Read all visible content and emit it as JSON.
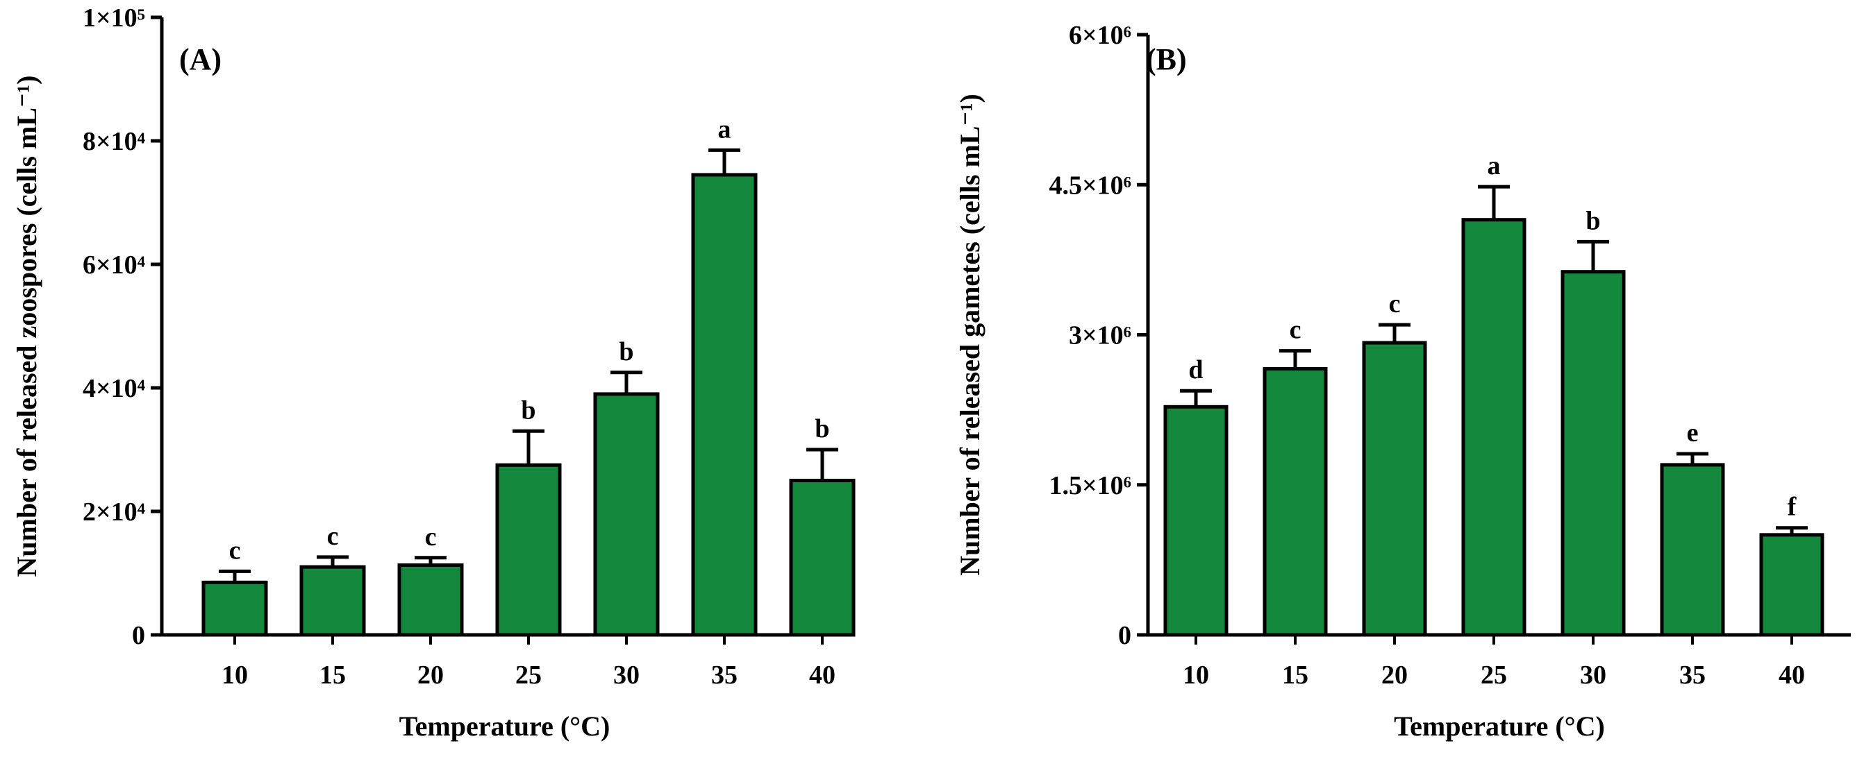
{
  "chart_data": [
    {
      "type": "bar",
      "panel_label": "(A)",
      "title": "",
      "xlabel": "Temperature (°C)",
      "ylabel": "Number of released zoospores (cells mL⁻¹)",
      "categories": [
        "10",
        "15",
        "20",
        "25",
        "30",
        "35",
        "40"
      ],
      "values": [
        8500,
        11000,
        11300,
        27500,
        39000,
        74500,
        25000
      ],
      "errors": [
        1800,
        1600,
        1200,
        5500,
        3500,
        4000,
        5000
      ],
      "significance": [
        "c",
        "c",
        "c",
        "b",
        "b",
        "a",
        "b"
      ],
      "ylim": [
        0,
        100000
      ],
      "y_ticks": [
        0,
        20000,
        40000,
        60000,
        80000,
        100000
      ],
      "y_tick_labels": [
        "0",
        "2×10⁴",
        "4×10⁴",
        "6×10⁴",
        "8×10⁴",
        "1×10⁵"
      ],
      "bar_color": "#14883c",
      "grid": false
    },
    {
      "type": "bar",
      "panel_label": "(B)",
      "title": "",
      "xlabel": "Temperature (°C)",
      "ylabel": "Number of released gametes (cells mL⁻¹)",
      "categories": [
        "10",
        "15",
        "20",
        "25",
        "30",
        "35",
        "40"
      ],
      "values": [
        2280000,
        2660000,
        2920000,
        4150000,
        3630000,
        1700000,
        1000000
      ],
      "errors": [
        160000,
        180000,
        180000,
        330000,
        300000,
        110000,
        70000
      ],
      "significance": [
        "d",
        "c",
        "c",
        "a",
        "b",
        "e",
        "f"
      ],
      "ylim": [
        0,
        6000000
      ],
      "y_ticks": [
        0,
        1500000,
        3000000,
        4500000,
        6000000
      ],
      "y_tick_labels": [
        "0",
        "1.5×10⁶",
        "3×10⁶",
        "4.5×10⁶",
        "6×10⁶"
      ],
      "bar_color": "#14883c",
      "grid": false
    }
  ]
}
